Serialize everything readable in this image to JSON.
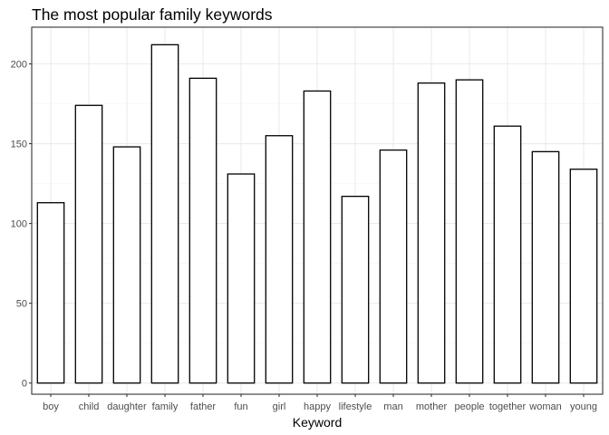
{
  "chart_data": {
    "type": "bar",
    "title": "The most popular family keywords",
    "xlabel": "Keyword",
    "ylabel": "",
    "categories": [
      "boy",
      "child",
      "daughter",
      "family",
      "father",
      "fun",
      "girl",
      "happy",
      "lifestyle",
      "man",
      "mother",
      "people",
      "together",
      "woman",
      "young"
    ],
    "values": [
      113,
      174,
      148,
      212,
      191,
      131,
      155,
      183,
      117,
      146,
      188,
      190,
      161,
      145,
      134
    ],
    "ylim": [
      -7,
      223
    ],
    "yticks": [
      0,
      50,
      100,
      150,
      200
    ],
    "grid": true,
    "legend": "none",
    "colors": {
      "bar_fill": "#ffffff",
      "bar_stroke": "#000000",
      "grid": "#ebebeb",
      "panel_border": "#333333"
    }
  }
}
